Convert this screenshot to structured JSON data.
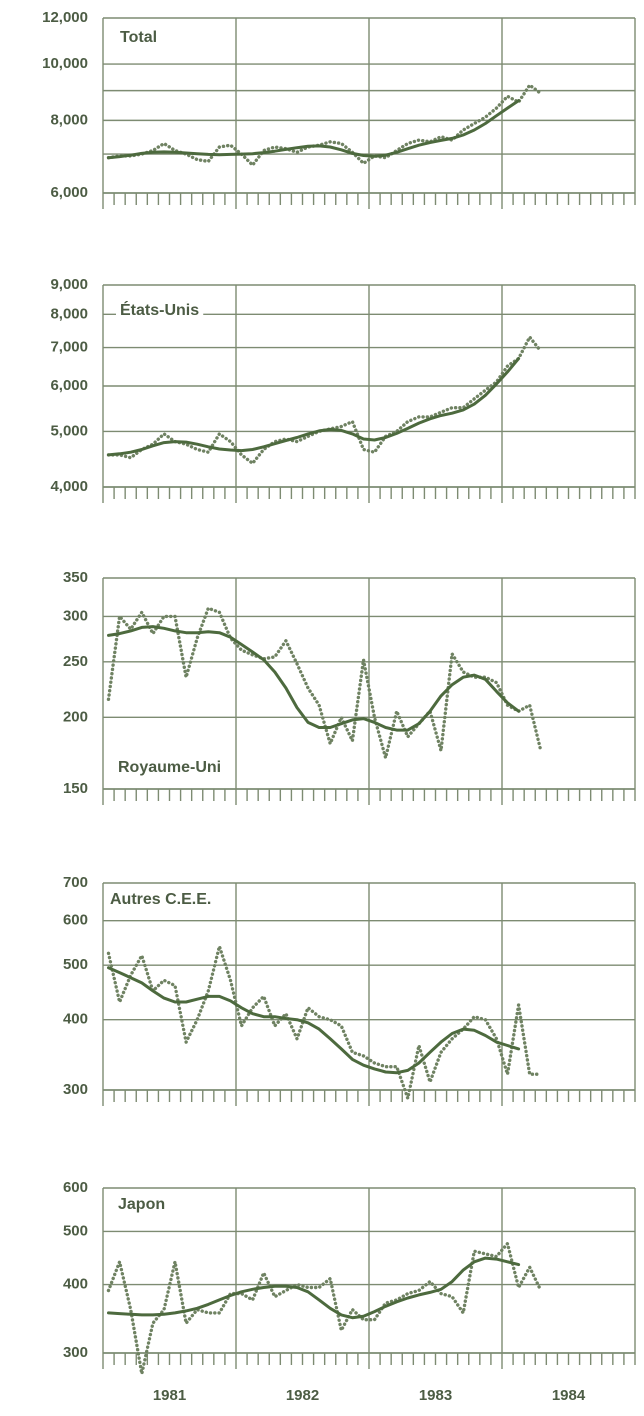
{
  "chart_data": [
    {
      "type": "line",
      "title": "Total",
      "log_scale": true,
      "grid": true,
      "ylim": [
        6000,
        12000
      ],
      "yticks": [
        {
          "value": 6000,
          "label": "6,000"
        },
        {
          "value": 8000,
          "label": "8,000"
        },
        {
          "value": 10000,
          "label": "10,000"
        },
        {
          "value": 12000,
          "label": "12,000"
        }
      ],
      "yticks_minor": [
        7000,
        9000
      ],
      "categories": [
        null,
        null,
        null,
        null,
        null,
        null,
        null,
        null,
        null,
        null,
        null,
        null,
        null,
        null,
        null,
        null,
        null,
        null,
        null,
        null,
        null,
        null,
        null,
        null,
        null,
        null,
        null,
        null,
        null,
        null,
        null,
        null,
        null,
        null,
        null,
        null,
        null,
        null,
        null,
        null,
        null,
        null,
        null,
        null,
        null,
        null,
        null,
        null
      ],
      "series": [
        {
          "style": "dotted",
          "color": "#6f8262",
          "values": [
            6900,
            6950,
            6950,
            7000,
            7100,
            7300,
            7100,
            7000,
            6850,
            6800,
            7200,
            7250,
            7000,
            6700,
            7100,
            7200,
            7150,
            7050,
            7200,
            7250,
            7350,
            7300,
            7050,
            6750,
            6950,
            6900,
            7100,
            7300,
            7400,
            7350,
            7500,
            7400,
            7700,
            7900,
            8100,
            8400,
            8800,
            8600,
            9200,
            8900,
            null,
            null,
            null,
            null,
            null,
            null,
            null,
            null
          ]
        },
        {
          "style": "solid",
          "color": "#4d6a3e",
          "values": [
            6900,
            6930,
            6970,
            7020,
            7050,
            7060,
            7050,
            7030,
            7010,
            6990,
            6980,
            6990,
            7000,
            7010,
            7040,
            7080,
            7130,
            7180,
            7220,
            7230,
            7200,
            7120,
            7020,
            6960,
            6940,
            6970,
            7050,
            7150,
            7250,
            7330,
            7390,
            7450,
            7550,
            7700,
            7900,
            8150,
            8400,
            8650,
            null,
            null,
            null,
            null,
            null,
            null,
            null,
            null,
            null,
            null
          ]
        }
      ]
    },
    {
      "type": "line",
      "title": "États-Unis",
      "log_scale": true,
      "grid": true,
      "ylim": [
        4000,
        9000
      ],
      "yticks": [
        {
          "value": 4000,
          "label": "4,000"
        },
        {
          "value": 5000,
          "label": "5,000"
        },
        {
          "value": 6000,
          "label": "6,000"
        },
        {
          "value": 7000,
          "label": "7,000"
        },
        {
          "value": 8000,
          "label": "8,000"
        },
        {
          "value": 9000,
          "label": "9,000"
        }
      ],
      "categories": [
        null,
        null,
        null,
        null,
        null,
        null,
        null,
        null,
        null,
        null,
        null,
        null,
        null,
        null,
        null,
        null,
        null,
        null,
        null,
        null,
        null,
        null,
        null,
        null,
        null,
        null,
        null,
        null,
        null,
        null,
        null,
        null,
        null,
        null,
        null,
        null,
        null,
        null,
        null,
        null,
        null,
        null,
        null,
        null,
        null,
        null,
        null,
        null
      ],
      "series": [
        {
          "style": "dotted",
          "color": "#6f8262",
          "values": [
            4550,
            4550,
            4500,
            4650,
            4750,
            4950,
            4800,
            4750,
            4650,
            4600,
            4950,
            4800,
            4550,
            4400,
            4650,
            4800,
            4850,
            4800,
            4900,
            5000,
            5050,
            5100,
            5200,
            4650,
            4600,
            4900,
            5000,
            5200,
            5300,
            5300,
            5400,
            5500,
            5500,
            5700,
            5900,
            6100,
            6500,
            6700,
            7300,
            6900,
            null,
            null,
            null,
            null,
            null,
            null,
            null,
            null
          ]
        },
        {
          "style": "solid",
          "color": "#4d6a3e",
          "values": [
            4550,
            4570,
            4600,
            4650,
            4720,
            4780,
            4800,
            4790,
            4750,
            4700,
            4660,
            4640,
            4630,
            4650,
            4700,
            4760,
            4820,
            4880,
            4950,
            5010,
            5040,
            5020,
            4950,
            4850,
            4830,
            4880,
            4960,
            5060,
            5170,
            5260,
            5330,
            5380,
            5450,
            5580,
            5780,
            6050,
            6350,
            6700,
            null,
            null,
            null,
            null,
            null,
            null,
            null,
            null,
            null,
            null
          ]
        }
      ]
    },
    {
      "type": "line",
      "title": "Royaume-Uni",
      "log_scale": true,
      "grid": true,
      "ylim": [
        150,
        350
      ],
      "yticks": [
        150,
        200,
        250,
        300,
        350
      ],
      "categories": [
        null,
        null,
        null,
        null,
        null,
        null,
        null,
        null,
        null,
        null,
        null,
        null,
        null,
        null,
        null,
        null,
        null,
        null,
        null,
        null,
        null,
        null,
        null,
        null,
        null,
        null,
        null,
        null,
        null,
        null,
        null,
        null,
        null,
        null,
        null,
        null,
        null,
        null,
        null,
        null,
        null,
        null,
        null,
        null,
        null,
        null,
        null,
        null
      ],
      "series": [
        {
          "style": "dotted",
          "color": "#6f8262",
          "values": [
            215,
            300,
            285,
            305,
            280,
            300,
            300,
            235,
            275,
            310,
            305,
            275,
            262,
            257,
            253,
            255,
            272,
            248,
            225,
            210,
            180,
            200,
            182,
            252,
            200,
            170,
            205,
            185,
            195,
            205,
            175,
            258,
            240,
            235,
            235,
            230,
            210,
            205,
            210,
            175,
            null,
            null,
            null,
            null,
            null,
            null,
            null,
            null
          ]
        },
        {
          "style": "solid",
          "color": "#4d6a3e",
          "values": [
            278,
            280,
            283,
            287,
            288,
            286,
            283,
            281,
            281,
            282,
            281,
            276,
            268,
            260,
            252,
            240,
            225,
            208,
            196,
            192,
            192,
            195,
            198,
            199,
            196,
            192,
            190,
            190,
            195,
            205,
            218,
            228,
            235,
            237,
            233,
            222,
            212,
            205,
            null,
            null,
            null,
            null,
            null,
            null,
            null,
            null,
            null,
            null
          ]
        }
      ]
    },
    {
      "type": "line",
      "title": "Autres C.E.E.",
      "log_scale": true,
      "grid": true,
      "ylim": [
        300,
        700
      ],
      "yticks": [
        300,
        400,
        500,
        600,
        700
      ],
      "categories": [
        null,
        null,
        null,
        null,
        null,
        null,
        null,
        null,
        null,
        null,
        null,
        null,
        null,
        null,
        null,
        null,
        null,
        null,
        null,
        null,
        null,
        null,
        null,
        null,
        null,
        null,
        null,
        null,
        null,
        null,
        null,
        null,
        null,
        null,
        null,
        null,
        null,
        null,
        null,
        null,
        null,
        null,
        null,
        null,
        null,
        null,
        null,
        null
      ],
      "series": [
        {
          "style": "dotted",
          "color": "#6f8262",
          "values": [
            525,
            430,
            480,
            520,
            450,
            470,
            460,
            365,
            400,
            450,
            540,
            470,
            390,
            420,
            440,
            390,
            410,
            370,
            420,
            405,
            400,
            390,
            350,
            345,
            335,
            330,
            330,
            290,
            360,
            310,
            350,
            370,
            385,
            405,
            400,
            370,
            320,
            425,
            320,
            320,
            null,
            null,
            null,
            null,
            null,
            null,
            null,
            null
          ]
        },
        {
          "style": "solid",
          "color": "#4d6a3e",
          "values": [
            495,
            485,
            475,
            465,
            450,
            437,
            430,
            430,
            435,
            440,
            440,
            432,
            420,
            410,
            405,
            405,
            402,
            400,
            395,
            385,
            370,
            355,
            340,
            332,
            327,
            323,
            322,
            325,
            335,
            350,
            365,
            378,
            385,
            383,
            375,
            365,
            360,
            355,
            null,
            null,
            null,
            null,
            null,
            null,
            null,
            null,
            null,
            null
          ]
        }
      ]
    },
    {
      "type": "line",
      "title": "Japon",
      "log_scale": true,
      "grid": true,
      "ylim": [
        300,
        600
      ],
      "yticks": [
        300,
        400,
        500,
        600
      ],
      "categories": [
        null,
        null,
        null,
        null,
        null,
        null,
        "1981",
        null,
        null,
        null,
        null,
        null,
        null,
        null,
        null,
        null,
        null,
        null,
        "1982",
        null,
        null,
        null,
        null,
        null,
        null,
        null,
        null,
        null,
        null,
        null,
        "1983",
        null,
        null,
        null,
        null,
        null,
        null,
        null,
        null,
        null,
        null,
        null,
        "1984",
        null,
        null,
        null,
        null,
        null
      ],
      "series": [
        {
          "style": "dotted",
          "color": "#6f8262",
          "values": [
            390,
            440,
            360,
            275,
            340,
            360,
            440,
            340,
            360,
            355,
            355,
            385,
            385,
            375,
            420,
            380,
            390,
            400,
            395,
            395,
            410,
            330,
            360,
            345,
            345,
            370,
            375,
            385,
            390,
            405,
            385,
            380,
            355,
            460,
            455,
            450,
            475,
            395,
            430,
            390,
            null,
            null,
            null,
            null,
            null,
            null,
            null,
            null
          ]
        },
        {
          "style": "solid",
          "color": "#4d6a3e",
          "values": [
            355,
            354,
            353,
            352,
            352,
            353,
            355,
            358,
            362,
            368,
            375,
            382,
            388,
            392,
            395,
            397,
            397,
            395,
            388,
            375,
            362,
            352,
            348,
            350,
            357,
            365,
            372,
            378,
            383,
            387,
            392,
            405,
            425,
            440,
            447,
            445,
            440,
            435,
            null,
            null,
            null,
            null,
            null,
            null,
            null,
            null,
            null,
            null
          ]
        }
      ]
    }
  ]
}
